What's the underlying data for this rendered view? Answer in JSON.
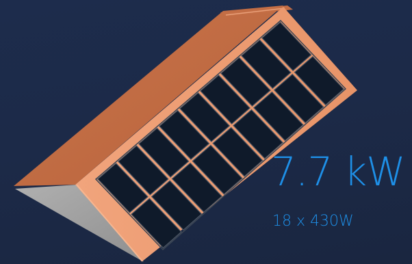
{
  "system": {
    "power": "7.7 kW",
    "configuration": "18 x 430W"
  },
  "panels": {
    "count": 18,
    "rows": 2,
    "columns": 9
  },
  "colors": {
    "background": "#1d2c4c",
    "accent": "#1e90e8",
    "roof_tile": "#c56f47",
    "roof_edge": "#f2a57a",
    "gable_wall": "#a3a3a3",
    "panel_cell": "#0f1a2a",
    "panel_grid": "#4e5866"
  }
}
